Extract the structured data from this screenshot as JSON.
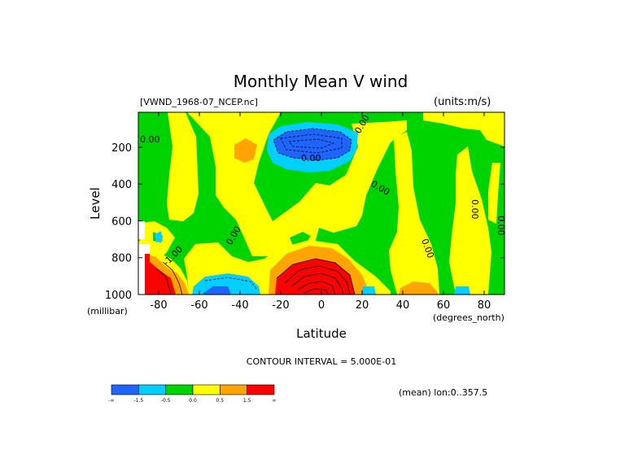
{
  "chart_data": {
    "type": "heatmap",
    "title": "Monthly Mean V wind",
    "source_file": "[VWND_1968-07_NCEP.nc]",
    "units": "(units:m/s)",
    "xlabel": "Latitude",
    "x_units": "(degrees_north)",
    "ylabel": "Level",
    "y_units": "(millibar)",
    "xlim": [
      -90,
      90
    ],
    "ylim": [
      1000,
      10
    ],
    "y_reversed": true,
    "x_ticks": [
      -80,
      -60,
      -40,
      -20,
      0,
      20,
      40,
      60,
      80
    ],
    "y_ticks": [
      200,
      400,
      600,
      800,
      1000
    ],
    "contour_interval_text": "CONTOUR INTERVAL = 5.000E-01",
    "averaging_text": "(mean) lon:0..357.5",
    "contour_labels": [
      "0.00",
      "0.00",
      "0.00",
      "0.00",
      "0.00",
      "0.00",
      "0.00",
      "0.00",
      "-1.00"
    ],
    "colorbar": {
      "colors": [
        "#1e64ff",
        "#00cfff",
        "#00d400",
        "#ffff00",
        "#ffa400",
        "#ff0000"
      ],
      "tick_labels": [
        "-∞",
        "-1.5",
        "-0.5",
        "0.0",
        "0.5",
        "1.5",
        "∞"
      ]
    },
    "color_levels": [
      {
        "name": "below -1.5",
        "color": "#1e64ff"
      },
      {
        "name": "-1.5 to -0.5",
        "color": "#00cfff"
      },
      {
        "name": "-0.5 to 0.0",
        "color": "#00d400"
      },
      {
        "name": "0.0 to 0.5",
        "color": "#ffff00"
      },
      {
        "name": "0.5 to 1.5",
        "color": "#ffa400"
      },
      {
        "name": "above 1.5",
        "color": "#ff0000"
      }
    ]
  }
}
